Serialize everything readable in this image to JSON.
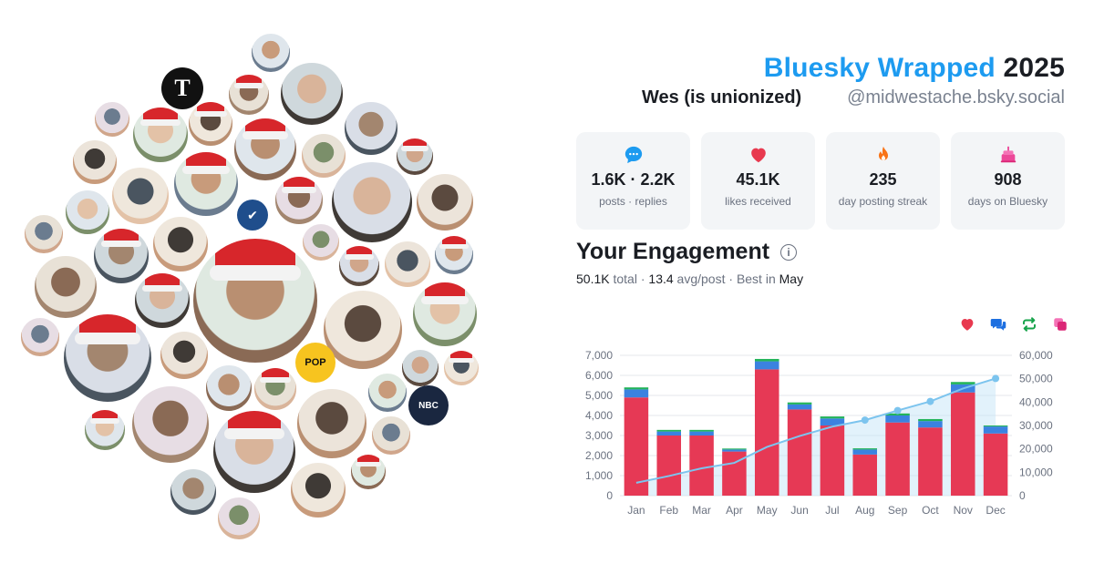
{
  "header": {
    "brand": "Bluesky Wrapped",
    "year": "2025",
    "display_name": "Wes (is unionized)",
    "handle": "@midwestache.bsky.social"
  },
  "stats": [
    {
      "icon": "speech-bubble-icon",
      "value": "1.6K · 2.2K",
      "label": "posts · replies",
      "color": "#1d9bf0"
    },
    {
      "icon": "heart-icon",
      "value": "45.1K",
      "label": "likes received",
      "color": "#e8394f"
    },
    {
      "icon": "flame-icon",
      "value": "235",
      "label": "day posting streak",
      "color": "#f97316"
    },
    {
      "icon": "cake-icon",
      "value": "908",
      "label": "days on Bluesky",
      "color": "#ec4899"
    }
  ],
  "engagement": {
    "title": "Your Engagement",
    "total_value": "50.1K",
    "total_word": "total",
    "avg_value": "13.4",
    "avg_word": "avg/post",
    "best_word": "Best in",
    "best_month": "May",
    "legend_icons": [
      {
        "icon": "heart-icon",
        "color": "#e8394f"
      },
      {
        "icon": "reply-bubbles-icon",
        "color": "#1d6fe0"
      },
      {
        "icon": "repost-icon",
        "color": "#16a34a"
      },
      {
        "icon": "quote-icon",
        "color": "#ec4899"
      }
    ]
  },
  "chart_data": {
    "type": "bar",
    "categories": [
      "Jan",
      "Feb",
      "Mar",
      "Apr",
      "May",
      "Jun",
      "Jul",
      "Aug",
      "Sep",
      "Oct",
      "Nov",
      "Dec"
    ],
    "series": [
      {
        "values": [
          4900,
          3000,
          3000,
          2200,
          6300,
          4300,
          3500,
          2050,
          3650,
          3400,
          5150,
          3100
        ],
        "color": "#e63955"
      },
      {
        "values": [
          400,
          200,
          200,
          100,
          400,
          250,
          350,
          250,
          350,
          320,
          400,
          350
        ],
        "color": "#3b82e0"
      },
      {
        "values": [
          100,
          80,
          80,
          50,
          120,
          100,
          100,
          60,
          100,
          100,
          120,
          50
        ],
        "color": "#22b35a"
      }
    ],
    "cumulative_line": {
      "values": [
        5500,
        8400,
        11700,
        14000,
        20800,
        25500,
        29500,
        32300,
        36400,
        40300,
        45800,
        50100
      ],
      "color": "#7cc4ee"
    },
    "ylim_left": [
      0,
      7000
    ],
    "ylim_right": [
      0,
      60000
    ],
    "yticks_left": [
      "0",
      "1,000",
      "2,000",
      "3,000",
      "4,000",
      "5,000",
      "6,000",
      "7,000"
    ],
    "yticks_right": [
      "0",
      "10,000",
      "20,000",
      "30,000",
      "40,000",
      "50,000",
      "60,000"
    ],
    "grid": true
  }
}
